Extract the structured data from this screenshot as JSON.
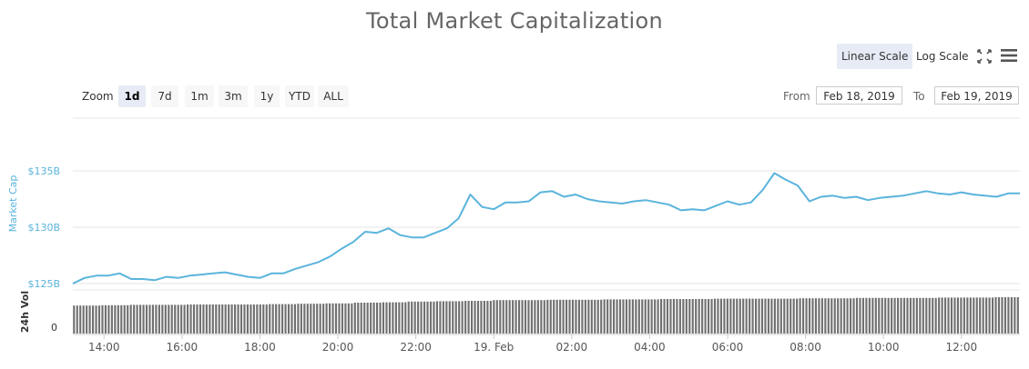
{
  "title": "Total Market Capitalization",
  "scale": {
    "linear_label": "Linear Scale",
    "log_label": "Log Scale",
    "active": "linear"
  },
  "icons": {
    "fullscreen": "fullscreen-icon",
    "menu": "hamburger-menu-icon"
  },
  "zoom": {
    "label": "Zoom",
    "options": [
      "1d",
      "7d",
      "1m",
      "3m",
      "1y",
      "YTD",
      "ALL"
    ],
    "active": "1d"
  },
  "range": {
    "from_label": "From",
    "from_value": "Feb 18, 2019",
    "to_label": "To",
    "to_value": "Feb 19, 2019"
  },
  "colors": {
    "line": "#5ab4dc",
    "volume": "#707070",
    "axis_label": "#5ab4dc",
    "grid": "#e6e6e6"
  },
  "chart_data": {
    "type": "line",
    "ylabel": "Market Cap",
    "volume_label": "24h Vol",
    "y_ticks": [
      "$125B",
      "$130B",
      "$135B"
    ],
    "y_tick_values": [
      125,
      130,
      135
    ],
    "ylim": [
      125,
      135
    ],
    "volume_tick": "0",
    "x_ticks": [
      "14:00",
      "16:00",
      "18:00",
      "20:00",
      "22:00",
      "19. Feb",
      "02:00",
      "04:00",
      "06:00",
      "08:00",
      "10:00",
      "12:00"
    ],
    "x_tick_hours": [
      14,
      16,
      18,
      20,
      22,
      24,
      26,
      28,
      30,
      32,
      34,
      36
    ],
    "x_range_hours": [
      13.2,
      37.5
    ],
    "series": [
      {
        "x_hours": [
          13.2,
          13.5,
          13.8,
          14.1,
          14.4,
          14.7,
          15.0,
          15.3,
          15.6,
          15.9,
          16.2,
          16.5,
          16.8,
          17.1,
          17.4,
          17.7,
          18.0,
          18.3,
          18.6,
          18.9,
          19.2,
          19.5,
          19.8,
          20.1,
          20.4,
          20.7,
          21.0,
          21.3,
          21.6,
          21.9,
          22.2,
          22.5,
          22.8,
          23.1,
          23.4,
          23.7,
          24.0,
          24.3,
          24.6,
          24.9,
          25.2,
          25.5,
          25.8,
          26.1,
          26.4,
          26.7,
          27.0,
          27.3,
          27.6,
          27.9,
          28.2,
          28.5,
          28.8,
          29.1,
          29.4,
          29.7,
          30.0,
          30.3,
          30.6,
          30.9,
          31.2,
          31.5,
          31.8,
          32.1,
          32.4,
          32.7,
          33.0,
          33.3,
          33.6,
          33.9,
          34.2,
          34.5,
          34.8,
          35.1,
          35.4,
          35.7,
          36.0,
          36.3,
          36.6,
          36.9,
          37.2,
          37.5
        ],
        "values": [
          125.0,
          125.5,
          125.7,
          125.7,
          125.9,
          125.4,
          125.4,
          125.3,
          125.6,
          125.5,
          125.7,
          125.8,
          125.9,
          126.0,
          125.8,
          125.6,
          125.5,
          125.9,
          125.9,
          126.3,
          126.6,
          126.9,
          127.4,
          128.1,
          128.7,
          129.6,
          129.5,
          129.9,
          129.3,
          129.1,
          129.1,
          129.5,
          129.9,
          130.8,
          132.9,
          131.8,
          131.6,
          132.2,
          132.2,
          132.3,
          133.1,
          133.2,
          132.7,
          132.9,
          132.5,
          132.3,
          132.2,
          132.1,
          132.3,
          132.4,
          132.2,
          132.0,
          131.5,
          131.6,
          131.5,
          131.9,
          132.3,
          132.0,
          132.2,
          133.3,
          134.8,
          134.2,
          133.7,
          132.3,
          132.7,
          132.8,
          132.6,
          132.7,
          132.4,
          132.6,
          132.7,
          132.8,
          133.0,
          133.2,
          133.0,
          132.9,
          133.1,
          132.9,
          132.8,
          132.7,
          133.0,
          133.0
        ]
      }
    ],
    "volume_values_relative": [
      0.77,
      0.78,
      0.79,
      0.79,
      0.8,
      0.8,
      0.8,
      0.81,
      0.82,
      0.83,
      0.85,
      0.86,
      0.88,
      0.89,
      0.9,
      0.92,
      0.92,
      0.93,
      0.93,
      0.94,
      0.94,
      0.95,
      0.95,
      0.96,
      0.96,
      0.96,
      0.97,
      0.97,
      0.98,
      0.98,
      0.98,
      0.99,
      0.99,
      1.0
    ]
  }
}
